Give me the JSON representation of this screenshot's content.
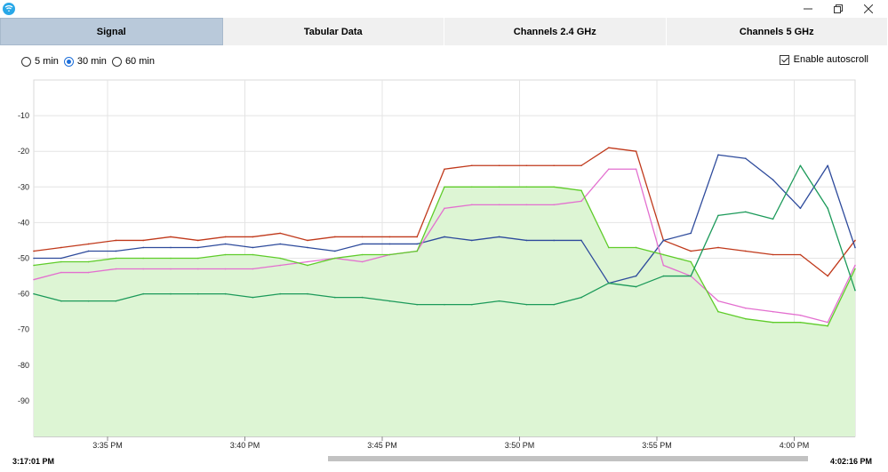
{
  "window": {
    "app_icon": "wifi-app-icon",
    "minimize_icon": "minimize-icon",
    "restore_icon": "restore-icon",
    "close_icon": "close-icon"
  },
  "tabs": [
    {
      "label": "Signal",
      "active": true
    },
    {
      "label": "Tabular Data",
      "active": false
    },
    {
      "label": "Channels 2.4 GHz",
      "active": false
    },
    {
      "label": "Channels 5 GHz",
      "active": false
    }
  ],
  "time_range": {
    "options": [
      "5 min",
      "30 min",
      "60 min"
    ],
    "selected": "30 min"
  },
  "autoscroll": {
    "label": "Enable autoscroll",
    "checked": true
  },
  "timeline": {
    "start": "3:17:01 PM",
    "end": "4:02:16 PM"
  },
  "colors": {
    "red": "#c0391b",
    "blue": "#2e4b9c",
    "magenta": "#e36fcf",
    "lime": "#5fcc2a",
    "green": "#1c9a5a",
    "fill": "#ddf5d4",
    "grid": "#e4e4e4"
  },
  "chart_data": {
    "type": "line",
    "title": "",
    "xlabel": "",
    "ylabel": "",
    "ylim": [
      -100,
      0
    ],
    "y_ticks": [
      -10,
      -20,
      -30,
      -40,
      -50,
      -60,
      -70,
      -80,
      -90
    ],
    "x_ticks": [
      "3:35 PM",
      "3:40 PM",
      "3:45 PM",
      "3:50 PM",
      "3:55 PM",
      "4:00 PM"
    ],
    "x": [
      0,
      1,
      2,
      3,
      4,
      5,
      6,
      7,
      8,
      9,
      10,
      11,
      12,
      13,
      14,
      15,
      16,
      17,
      18,
      19,
      20,
      21,
      22,
      23,
      24,
      25,
      26,
      27,
      28,
      29,
      30
    ],
    "series": [
      {
        "name": "red",
        "color": "#c0391b",
        "values": [
          -48,
          -47,
          -46,
          -45,
          -45,
          -44,
          -45,
          -44,
          -44,
          -43,
          -45,
          -44,
          -44,
          -44,
          -44,
          -25,
          -24,
          -24,
          -24,
          -24,
          -24,
          -19,
          -20,
          -45,
          -48,
          -47,
          -48,
          -49,
          -49,
          -55,
          -45
        ]
      },
      {
        "name": "blue",
        "color": "#2e4b9c",
        "values": [
          -50,
          -50,
          -48,
          -48,
          -47,
          -47,
          -47,
          -46,
          -47,
          -46,
          -47,
          -48,
          -46,
          -46,
          -46,
          -44,
          -45,
          -44,
          -45,
          -45,
          -45,
          -57,
          -55,
          -45,
          -43,
          -21,
          -22,
          -28,
          -36,
          -24,
          -47
        ]
      },
      {
        "name": "magenta",
        "color": "#e36fcf",
        "values": [
          -56,
          -54,
          -54,
          -53,
          -53,
          -53,
          -53,
          -53,
          -53,
          -52,
          -51,
          -50,
          -51,
          -49,
          -48,
          -36,
          -35,
          -35,
          -35,
          -35,
          -34,
          -25,
          -25,
          -52,
          -55,
          -62,
          -64,
          -65,
          -66,
          -68,
          -52
        ]
      },
      {
        "name": "lime",
        "color": "#5fcc2a",
        "values": [
          -52,
          -51,
          -51,
          -50,
          -50,
          -50,
          -50,
          -49,
          -49,
          -50,
          -52,
          -50,
          -49,
          -49,
          -48,
          -30,
          -30,
          -30,
          -30,
          -30,
          -31,
          -47,
          -47,
          -49,
          -51,
          -65,
          -67,
          -68,
          -68,
          -69,
          -53
        ]
      },
      {
        "name": "green",
        "color": "#1c9a5a",
        "values": [
          -60,
          -62,
          -62,
          -62,
          -60,
          -60,
          -60,
          -60,
          -61,
          -60,
          -60,
          -61,
          -61,
          -62,
          -63,
          -63,
          -63,
          -62,
          -63,
          -63,
          -61,
          -57,
          -58,
          -55,
          -55,
          -38,
          -37,
          -39,
          -24,
          -36,
          -59
        ]
      }
    ]
  }
}
